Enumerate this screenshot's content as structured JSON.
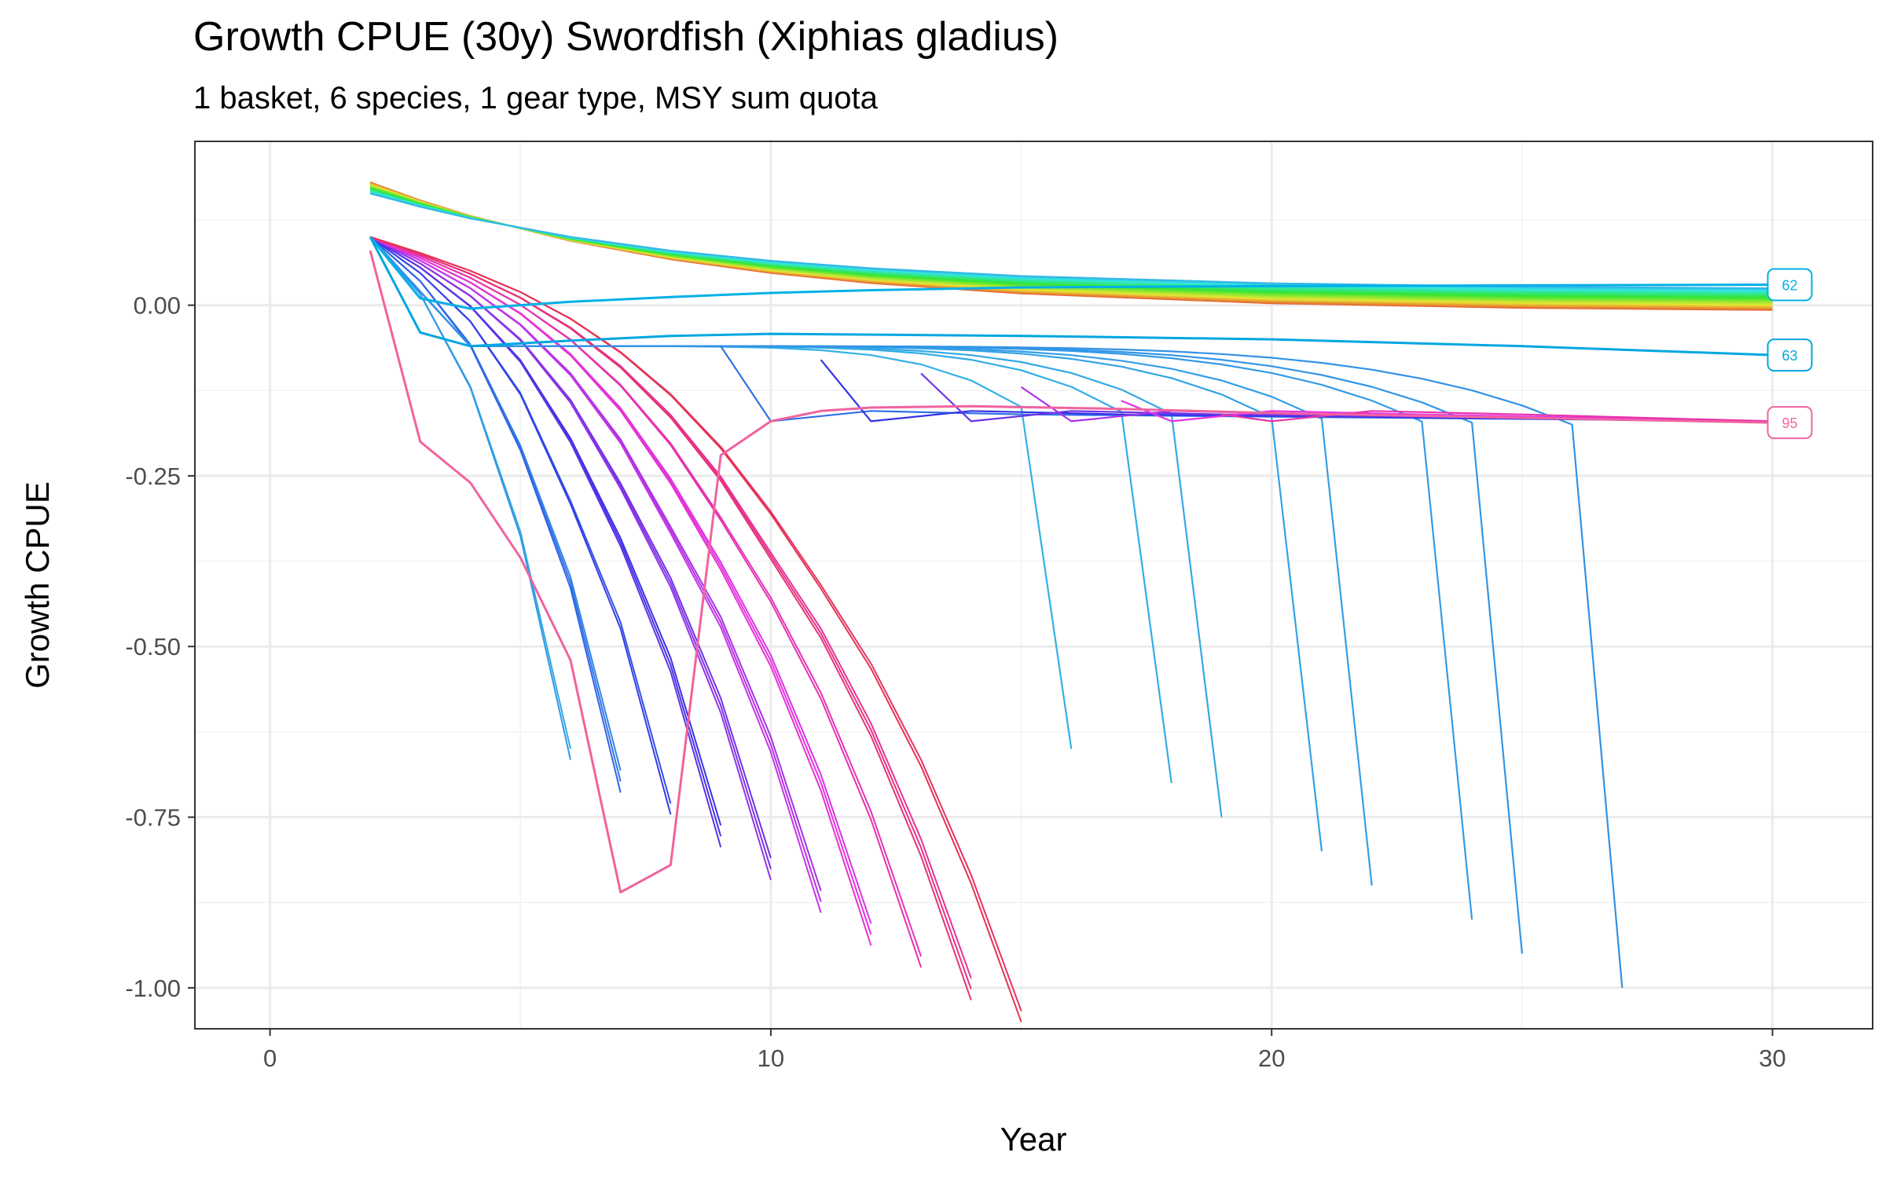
{
  "chart_data": {
    "type": "line",
    "title": "Growth CPUE (30y) Swordfish (Xiphias gladius)",
    "subtitle": "1 basket, 6 species, 1 gear type, MSY sum quota",
    "xlabel": "Year",
    "ylabel": "Growth CPUE",
    "xlim": [
      -1.5,
      32
    ],
    "ylim": [
      -1.06,
      0.24
    ],
    "x_ticks": [
      0,
      10,
      20,
      30
    ],
    "x_tick_labels": [
      "0",
      "10",
      "20",
      "30"
    ],
    "y_ticks": [
      -1.0,
      -0.75,
      -0.5,
      -0.25,
      0.0
    ],
    "y_tick_labels": [
      "-1.00",
      "-0.75",
      "-0.50",
      "-0.25",
      "0.00"
    ],
    "grid": true,
    "legend": "none",
    "color_scale": "hue palette across runs 1-100 (red to green to cyan to blue to magenta to pink)",
    "series": [
      {
        "name": "62",
        "x": [
          2,
          3,
          4,
          5,
          6,
          8,
          10,
          12,
          15,
          20,
          25,
          30
        ],
        "y": [
          0.1,
          0.01,
          -0.005,
          0.0,
          0.005,
          0.012,
          0.018,
          0.022,
          0.026,
          0.028,
          0.029,
          0.03
        ]
      },
      {
        "name": "63",
        "x": [
          2,
          3,
          4,
          6,
          8,
          10,
          15,
          20,
          25,
          30
        ],
        "y": [
          0.1,
          -0.04,
          -0.06,
          -0.052,
          -0.045,
          -0.042,
          -0.045,
          -0.05,
          -0.06,
          -0.073
        ]
      },
      {
        "name": "95",
        "x": [
          2,
          3,
          4,
          5,
          6,
          7,
          8,
          9,
          10,
          11,
          12,
          14,
          17,
          20,
          25,
          30
        ],
        "y": [
          0.08,
          -0.2,
          -0.26,
          -0.37,
          -0.52,
          -0.86,
          -0.82,
          -0.22,
          -0.17,
          -0.155,
          -0.15,
          -0.148,
          -0.152,
          -0.158,
          -0.165,
          -0.172
        ]
      }
    ],
    "end_labels": [
      "62",
      "63",
      "95"
    ]
  }
}
